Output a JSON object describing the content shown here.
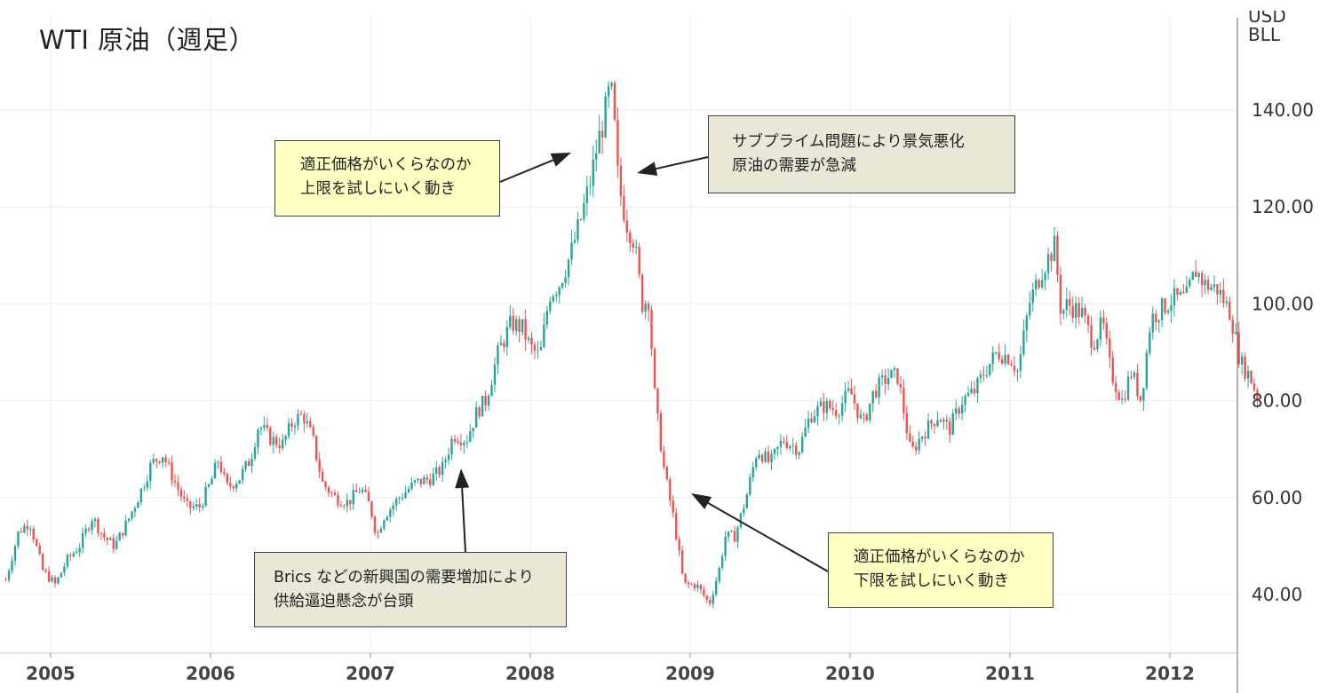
{
  "title": "WTI 原油（週足）",
  "y_axis_unit": {
    "line1": "USD",
    "line2": "BLL"
  },
  "annotations": {
    "top_left": {
      "line1": "適正価格がいくらなのか",
      "line2": "上限を試しにいく動き"
    },
    "top_right": {
      "line1": "サブプライム問題により景気悪化",
      "line2": "原油の需要が急減"
    },
    "bottom_left": {
      "line1": "Brics などの新興国の需要増加により",
      "line2": "供給逼迫懸念が台頭"
    },
    "bottom_right": {
      "line1": "適正価格がいくらなのか",
      "line2": "下限を試しにいく動き"
    }
  },
  "colors": {
    "up": "#26a69a",
    "down": "#ef5350",
    "grid": "#e6eef0",
    "axis": "#555555"
  },
  "chart_data": {
    "type": "candlestick",
    "title": "WTI 原油（週足）",
    "ylabel": "USD BLL",
    "ylim": [
      30,
      150
    ],
    "y_ticks": [
      "40.00",
      "60.00",
      "80.00",
      "100.00",
      "120.00",
      "140.00"
    ],
    "x_ticks": [
      "2005",
      "2006",
      "2007",
      "2008",
      "2009",
      "2010",
      "2011",
      "2012"
    ],
    "x_range_years": [
      2004.72,
      2012.56
    ],
    "grid": true,
    "weekly_close_path": [
      [
        2004.72,
        43
      ],
      [
        2004.8,
        53
      ],
      [
        2004.87,
        55
      ],
      [
        2004.95,
        45
      ],
      [
        2005.03,
        42
      ],
      [
        2005.1,
        47
      ],
      [
        2005.18,
        50
      ],
      [
        2005.26,
        56
      ],
      [
        2005.33,
        52
      ],
      [
        2005.4,
        50
      ],
      [
        2005.48,
        55
      ],
      [
        2005.56,
        61
      ],
      [
        2005.63,
        67
      ],
      [
        2005.7,
        69
      ],
      [
        2005.78,
        63
      ],
      [
        2005.85,
        58
      ],
      [
        2005.93,
        58
      ],
      [
        2006.0,
        63
      ],
      [
        2006.05,
        68
      ],
      [
        2006.1,
        62
      ],
      [
        2006.18,
        64
      ],
      [
        2006.25,
        68
      ],
      [
        2006.3,
        75
      ],
      [
        2006.38,
        72
      ],
      [
        2006.45,
        71
      ],
      [
        2006.52,
        76
      ],
      [
        2006.58,
        77
      ],
      [
        2006.64,
        72
      ],
      [
        2006.7,
        63
      ],
      [
        2006.78,
        60
      ],
      [
        2006.86,
        59
      ],
      [
        2006.94,
        62
      ],
      [
        2007.0,
        58
      ],
      [
        2007.04,
        52
      ],
      [
        2007.08,
        56
      ],
      [
        2007.18,
        60
      ],
      [
        2007.28,
        63
      ],
      [
        2007.38,
        64
      ],
      [
        2007.45,
        66
      ],
      [
        2007.52,
        73
      ],
      [
        2007.6,
        72
      ],
      [
        2007.67,
        78
      ],
      [
        2007.72,
        80
      ],
      [
        2007.8,
        90
      ],
      [
        2007.88,
        96
      ],
      [
        2007.95,
        95
      ],
      [
        2008.0,
        91
      ],
      [
        2008.06,
        89
      ],
      [
        2008.12,
        102
      ],
      [
        2008.18,
        104
      ],
      [
        2008.25,
        110
      ],
      [
        2008.32,
        118
      ],
      [
        2008.38,
        126
      ],
      [
        2008.42,
        133
      ],
      [
        2008.46,
        138
      ],
      [
        2008.5,
        145
      ],
      [
        2008.52,
        140
      ],
      [
        2008.55,
        125
      ],
      [
        2008.6,
        117
      ],
      [
        2008.65,
        113
      ],
      [
        2008.7,
        100
      ],
      [
        2008.74,
        101
      ],
      [
        2008.78,
        80
      ],
      [
        2008.84,
        65
      ],
      [
        2008.9,
        55
      ],
      [
        2008.96,
        42
      ],
      [
        2009.04,
        42
      ],
      [
        2009.12,
        38
      ],
      [
        2009.18,
        45
      ],
      [
        2009.22,
        52
      ],
      [
        2009.28,
        52
      ],
      [
        2009.35,
        60
      ],
      [
        2009.42,
        70
      ],
      [
        2009.5,
        67
      ],
      [
        2009.58,
        72
      ],
      [
        2009.68,
        70
      ],
      [
        2009.75,
        77
      ],
      [
        2009.84,
        79
      ],
      [
        2009.92,
        78
      ],
      [
        2010.0,
        82
      ],
      [
        2010.08,
        75
      ],
      [
        2010.15,
        82
      ],
      [
        2010.24,
        85
      ],
      [
        2010.3,
        85
      ],
      [
        2010.38,
        69
      ],
      [
        2010.45,
        73
      ],
      [
        2010.55,
        77
      ],
      [
        2010.62,
        74
      ],
      [
        2010.7,
        80
      ],
      [
        2010.78,
        82
      ],
      [
        2010.84,
        86
      ],
      [
        2010.92,
        90
      ],
      [
        2011.0,
        89
      ],
      [
        2011.05,
        86
      ],
      [
        2011.12,
        100
      ],
      [
        2011.2,
        107
      ],
      [
        2011.28,
        112
      ],
      [
        2011.32,
        98
      ],
      [
        2011.36,
        100
      ],
      [
        2011.45,
        98
      ],
      [
        2011.52,
        92
      ],
      [
        2011.58,
        96
      ],
      [
        2011.63,
        86
      ],
      [
        2011.7,
        80
      ],
      [
        2011.76,
        86
      ],
      [
        2011.82,
        80
      ],
      [
        2011.88,
        97
      ],
      [
        2011.95,
        99
      ],
      [
        2012.02,
        101
      ],
      [
        2012.1,
        101
      ],
      [
        2012.16,
        107
      ],
      [
        2012.22,
        104
      ],
      [
        2012.3,
        103
      ],
      [
        2012.38,
        98
      ],
      [
        2012.44,
        88
      ],
      [
        2012.5,
        85
      ],
      [
        2012.56,
        80
      ]
    ]
  }
}
